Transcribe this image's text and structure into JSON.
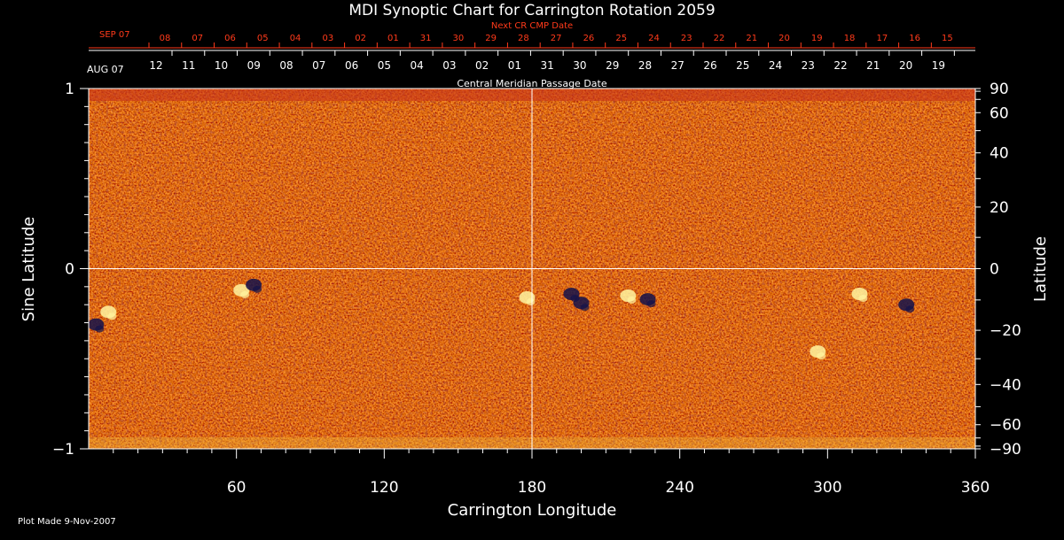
{
  "chart_data": {
    "type": "heatmap",
    "title": "MDI Synoptic Chart for Carrington Rotation 2059",
    "xlabel": "Carrington Longitude",
    "ylabel_left": "Sine Latitude",
    "ylabel_right": "Latitude",
    "xlim": [
      0,
      360
    ],
    "ylim": [
      -1,
      1
    ],
    "x_ticks": [
      60,
      120,
      180,
      240,
      300,
      360
    ],
    "y_ticks_left": [
      {
        "value": 1,
        "label": "1"
      },
      {
        "value": 0,
        "label": "0"
      },
      {
        "value": -1,
        "label": "−1"
      }
    ],
    "y_ticks_right": [
      {
        "deg": 90,
        "label": "90"
      },
      {
        "deg": 60,
        "label": "60"
      },
      {
        "deg": 40,
        "label": "40"
      },
      {
        "deg": 20,
        "label": "20"
      },
      {
        "deg": 0,
        "label": "0"
      },
      {
        "deg": -20,
        "label": "−20"
      },
      {
        "deg": -40,
        "label": "−40"
      },
      {
        "deg": -60,
        "label": "−60"
      },
      {
        "deg": -90,
        "label": "−90"
      }
    ],
    "crosshair": {
      "x": 180,
      "y": 0
    },
    "cmp_axis": {
      "title": "Central Meridian Passage Date",
      "start_label": "AUG 07",
      "dates": [
        "12",
        "11",
        "10",
        "09",
        "08",
        "07",
        "06",
        "05",
        "04",
        "03",
        "02",
        "01",
        "31",
        "30",
        "29",
        "28",
        "27",
        "26",
        "25",
        "24",
        "23",
        "22",
        "21",
        "20",
        "19"
      ]
    },
    "next_cr_axis": {
      "title": "Next CR CMP Date",
      "start_label": "SEP 07",
      "dates": [
        "08",
        "07",
        "06",
        "05",
        "04",
        "03",
        "02",
        "01",
        "31",
        "30",
        "29",
        "28",
        "27",
        "26",
        "25",
        "24",
        "23",
        "22",
        "21",
        "20",
        "19",
        "18",
        "17",
        "16",
        "15"
      ]
    },
    "active_regions": [
      {
        "lon": 62,
        "sinlat": -0.12,
        "polarity": "positive"
      },
      {
        "lon": 67,
        "sinlat": -0.09,
        "polarity": "negative"
      },
      {
        "lon": 8,
        "sinlat": -0.24,
        "polarity": "positive"
      },
      {
        "lon": 3,
        "sinlat": -0.31,
        "polarity": "negative"
      },
      {
        "lon": 178,
        "sinlat": -0.16,
        "polarity": "positive"
      },
      {
        "lon": 196,
        "sinlat": -0.14,
        "polarity": "negative"
      },
      {
        "lon": 200,
        "sinlat": -0.19,
        "polarity": "negative"
      },
      {
        "lon": 219,
        "sinlat": -0.15,
        "polarity": "positive"
      },
      {
        "lon": 227,
        "sinlat": -0.17,
        "polarity": "negative"
      },
      {
        "lon": 332,
        "sinlat": -0.2,
        "polarity": "negative"
      },
      {
        "lon": 313,
        "sinlat": -0.14,
        "polarity": "positive"
      },
      {
        "lon": 296,
        "sinlat": -0.46,
        "polarity": "positive"
      }
    ],
    "colors": {
      "background": "#000000",
      "map_base": "#e8501a",
      "positive": "#fff4a0",
      "negative": "#14124a",
      "crosshair": "#ffffff",
      "top_axis": "#ff3a1a"
    }
  },
  "footer": {
    "plot_made": "Plot Made  9-Nov-2007"
  }
}
